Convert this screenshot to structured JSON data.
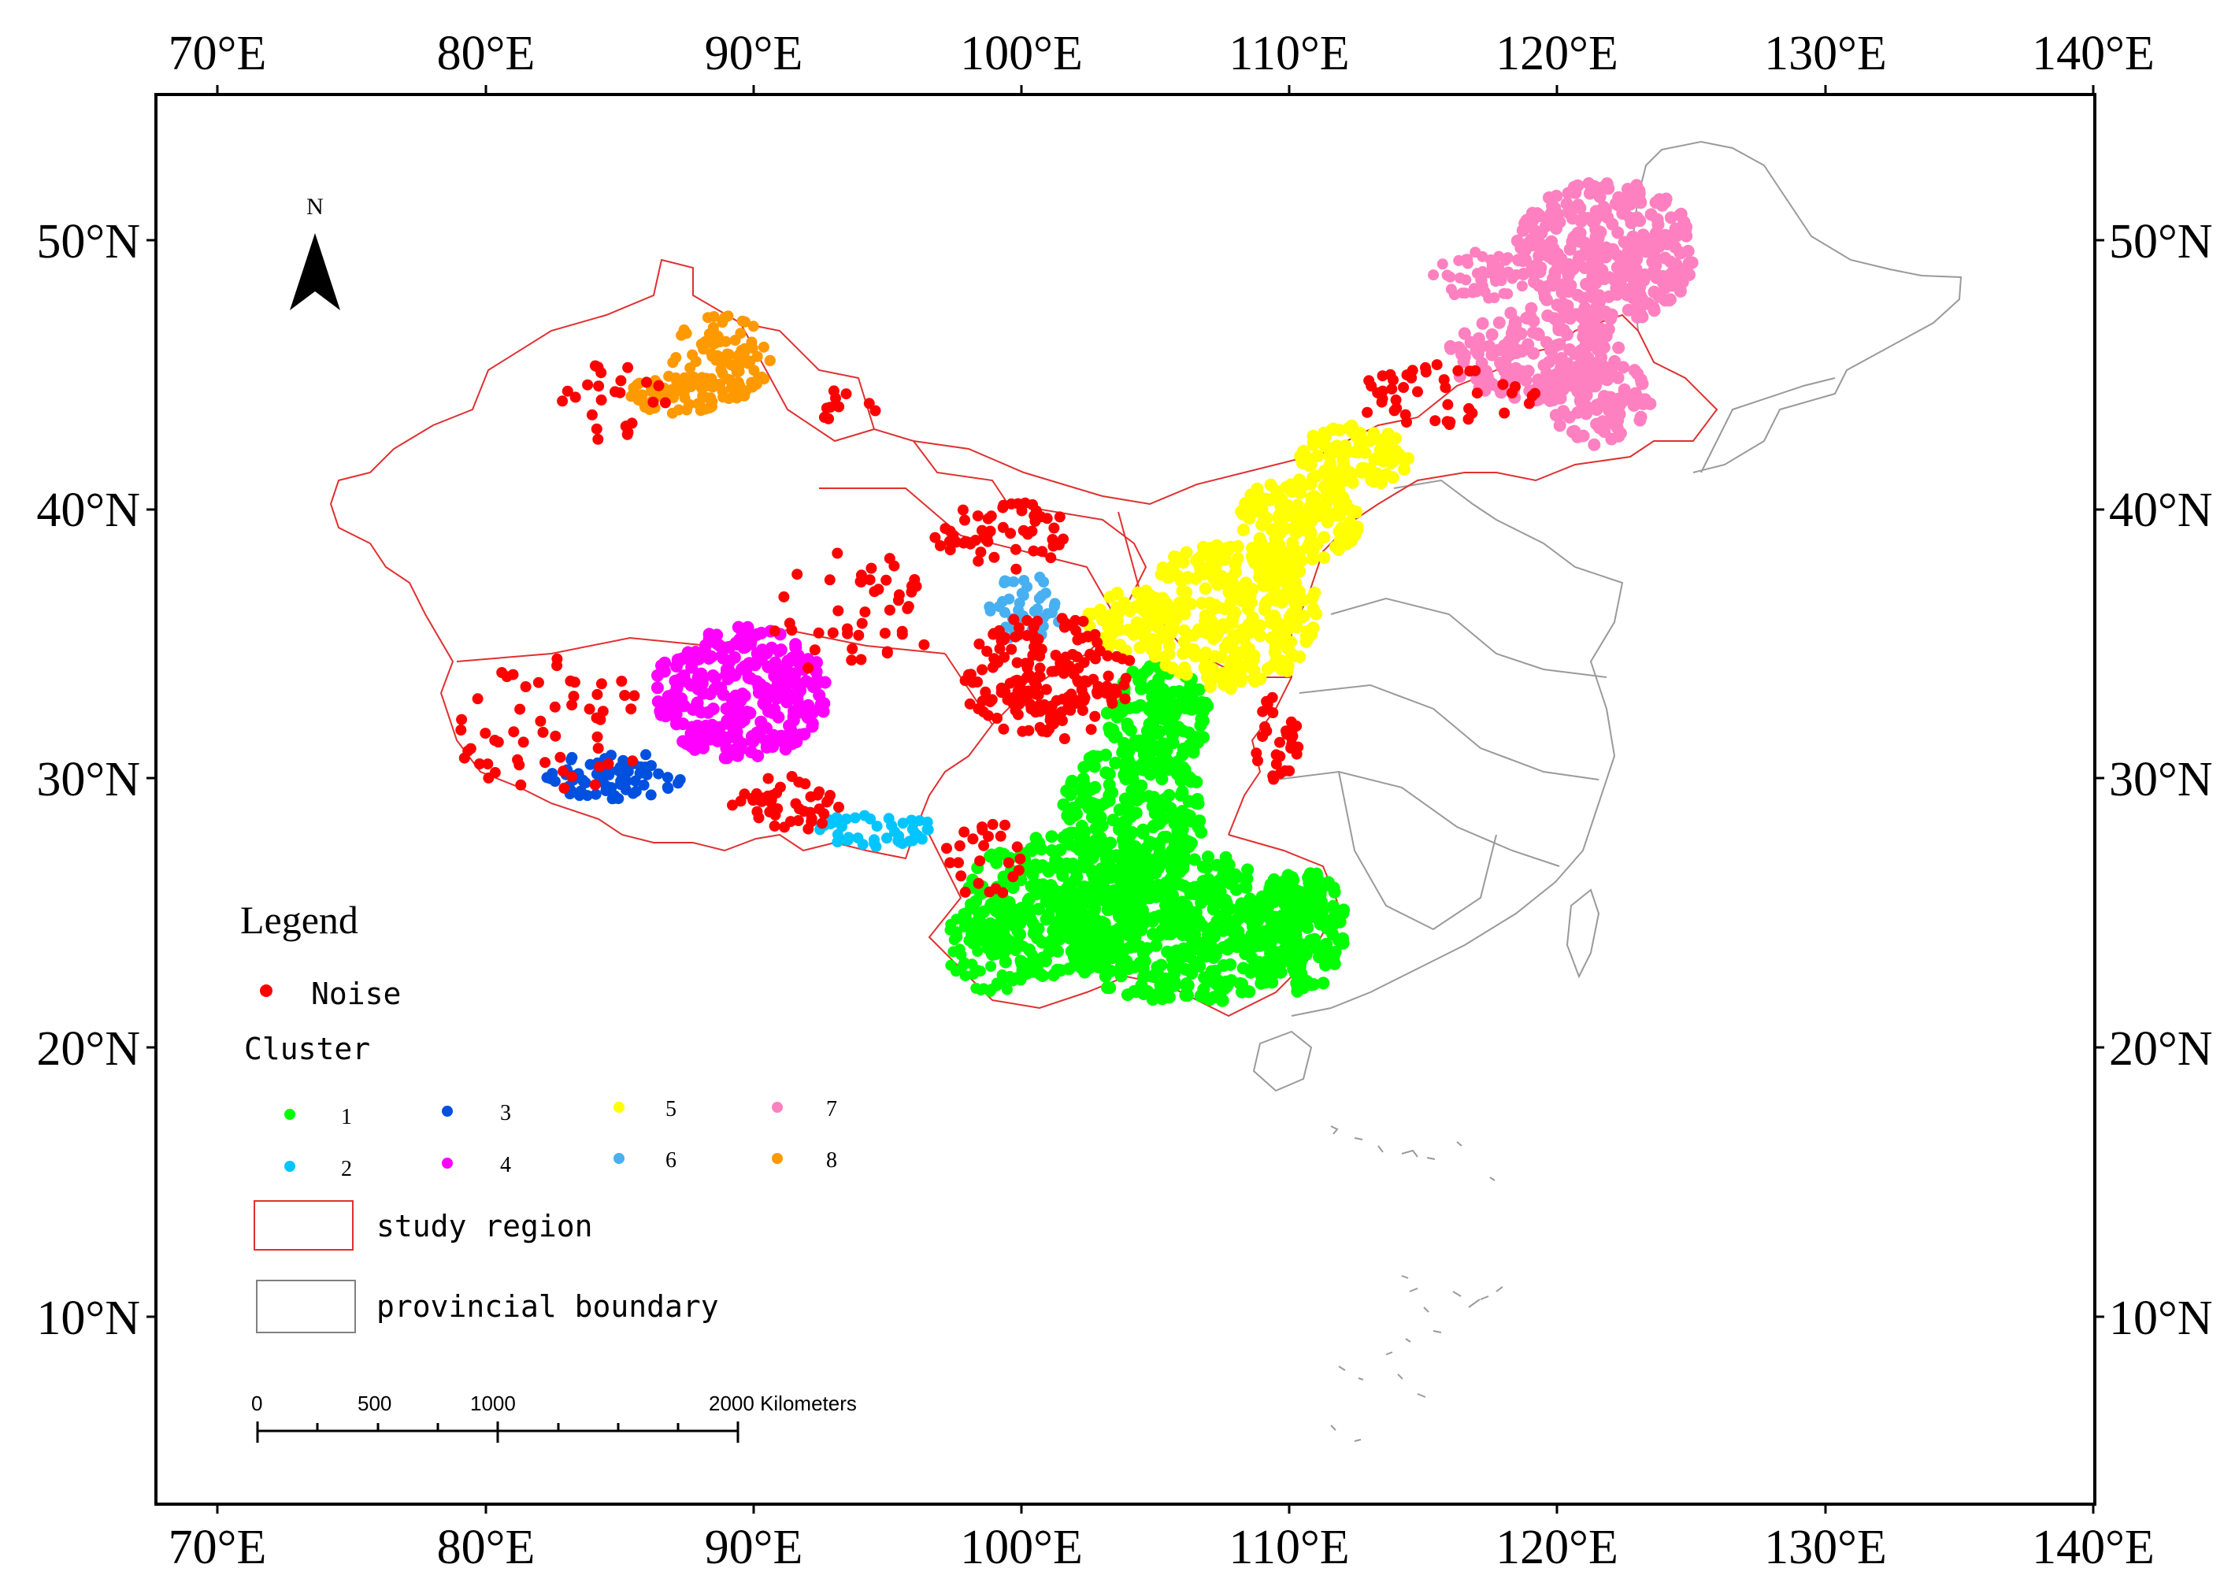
{
  "axes": {
    "lon_labels": [
      "70°E",
      "80°E",
      "90°E",
      "100°E",
      "110°E",
      "120°E",
      "130°E",
      "140°E"
    ],
    "lat_labels": [
      "50°N",
      "40°N",
      "30°N",
      "20°N",
      "10°N"
    ]
  },
  "north_arrow": {
    "label": "N"
  },
  "legend": {
    "title": "Legend",
    "noise_label": "Noise",
    "noise_color": "#ff0000",
    "cluster_heading": "Cluster",
    "clusters": [
      {
        "id": "1",
        "color": "#00ff00"
      },
      {
        "id": "2",
        "color": "#00c5ff"
      },
      {
        "id": "3",
        "color": "#0050e0"
      },
      {
        "id": "4",
        "color": "#ff00ff"
      },
      {
        "id": "5",
        "color": "#ffff00"
      },
      {
        "id": "6",
        "color": "#48b0f0"
      },
      {
        "id": "7",
        "color": "#ff80c0"
      },
      {
        "id": "8",
        "color": "#ff9900"
      }
    ],
    "study_region_label": "study region",
    "study_region_color": "#e03030",
    "provincial_boundary_label": "provincial boundary",
    "provincial_boundary_color": "#808080"
  },
  "scale_bar": {
    "labels": [
      "0",
      "500",
      "1000",
      "2000 Kilometers"
    ]
  }
}
